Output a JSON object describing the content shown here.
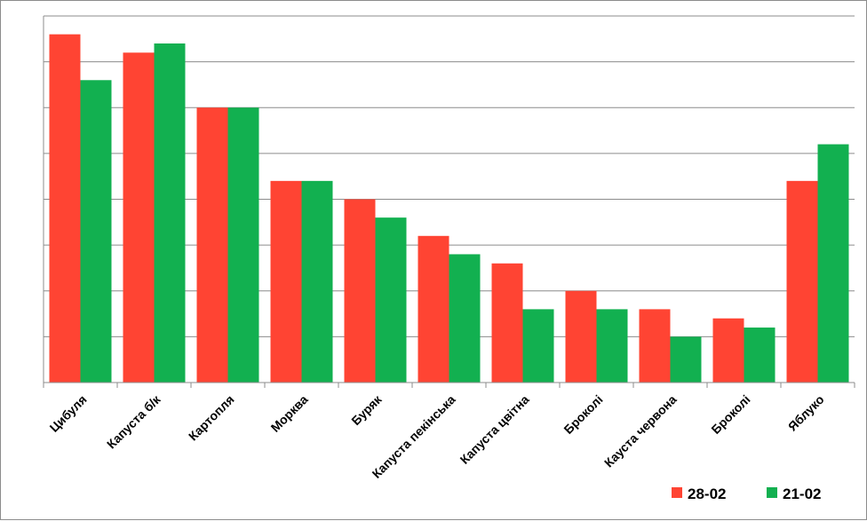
{
  "chart_data": {
    "type": "bar",
    "categories": [
      "Цибуля",
      "Капуста б/к",
      "Картопля",
      "Морква",
      "Буряк",
      "Капуста пекінська",
      "Капуста цвітна",
      "Броколі",
      "Кауста червона",
      "Броколі",
      "Яблуко"
    ],
    "series": [
      {
        "name": "28-02",
        "color": "#ff4433",
        "values": [
          7.6,
          7.2,
          6.0,
          4.4,
          4.0,
          3.2,
          2.6,
          2.0,
          1.6,
          1.4,
          4.4
        ]
      },
      {
        "name": "21-02",
        "color": "#12b050",
        "values": [
          6.6,
          7.4,
          6.0,
          4.4,
          3.6,
          2.8,
          1.6,
          1.6,
          1.0,
          1.2,
          5.2
        ]
      }
    ],
    "ylim": [
      0,
      8
    ],
    "y_gridlines": [
      1,
      2,
      3,
      4,
      5,
      6,
      7,
      8
    ],
    "grid": true,
    "legend": "bottom-right",
    "y_tick_labels_shown": false,
    "x_tick_rotation": "-45"
  }
}
